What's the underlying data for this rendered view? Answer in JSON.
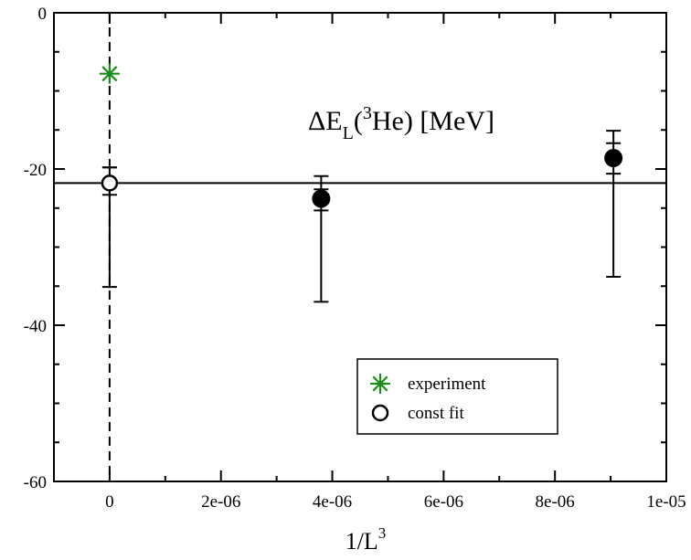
{
  "chart_data": {
    "type": "scatter",
    "xlabel": {
      "base": "1/L",
      "sup": "3"
    },
    "xlim": [
      -1e-06,
      1e-05
    ],
    "ylim": [
      -60,
      0
    ],
    "x_ticks": [
      {
        "value": 0,
        "label": "0"
      },
      {
        "value": 2e-06,
        "label": "2e-06"
      },
      {
        "value": 4e-06,
        "label": "4e-06"
      },
      {
        "value": 6e-06,
        "label": "6e-06"
      },
      {
        "value": 8e-06,
        "label": "8e-06"
      },
      {
        "value": 1e-05,
        "label": "1e-05"
      }
    ],
    "y_ticks": [
      {
        "value": 0,
        "label": "0"
      },
      {
        "value": -20,
        "label": "-20"
      },
      {
        "value": -40,
        "label": "-40"
      },
      {
        "value": -60,
        "label": "-60"
      }
    ],
    "annotation": {
      "prefix": "ΔE",
      "sub": "L",
      "open": "(",
      "sup": "3",
      "rest": "He) [MeV]"
    },
    "vertical_reference_x": 0,
    "fit_line_y": -21.8,
    "series": [
      {
        "marker": "filled-circle",
        "color": "#000000",
        "points": [
          {
            "x": 3.8e-06,
            "y": -23.8,
            "stat_low": -25.3,
            "stat_high": -22.6,
            "sys_low": -37.0,
            "sys_high": -20.9
          },
          {
            "x": 9.05e-06,
            "y": -18.6,
            "stat_low": -20.6,
            "stat_high": -16.7,
            "sys_low": -33.8,
            "sys_high": -15.1
          }
        ]
      },
      {
        "name": "const fit",
        "marker": "open-circle",
        "color": "#000000",
        "points": [
          {
            "x": 0,
            "y": -21.8,
            "stat_low": -23.3,
            "stat_high": -19.8,
            "sys_low": -35.1,
            "sys_high": -19.8
          }
        ]
      },
      {
        "name": "experiment",
        "marker": "asterisk",
        "color": "#1a8c1a",
        "points": [
          {
            "x": 0,
            "y": -7.8
          }
        ]
      }
    ],
    "legend": {
      "placement": "bottom-right",
      "entries": [
        {
          "label": "experiment",
          "marker": "asterisk",
          "color": "#1a8c1a"
        },
        {
          "label": "const fit",
          "marker": "open-circle",
          "color": "#000000"
        }
      ]
    }
  }
}
